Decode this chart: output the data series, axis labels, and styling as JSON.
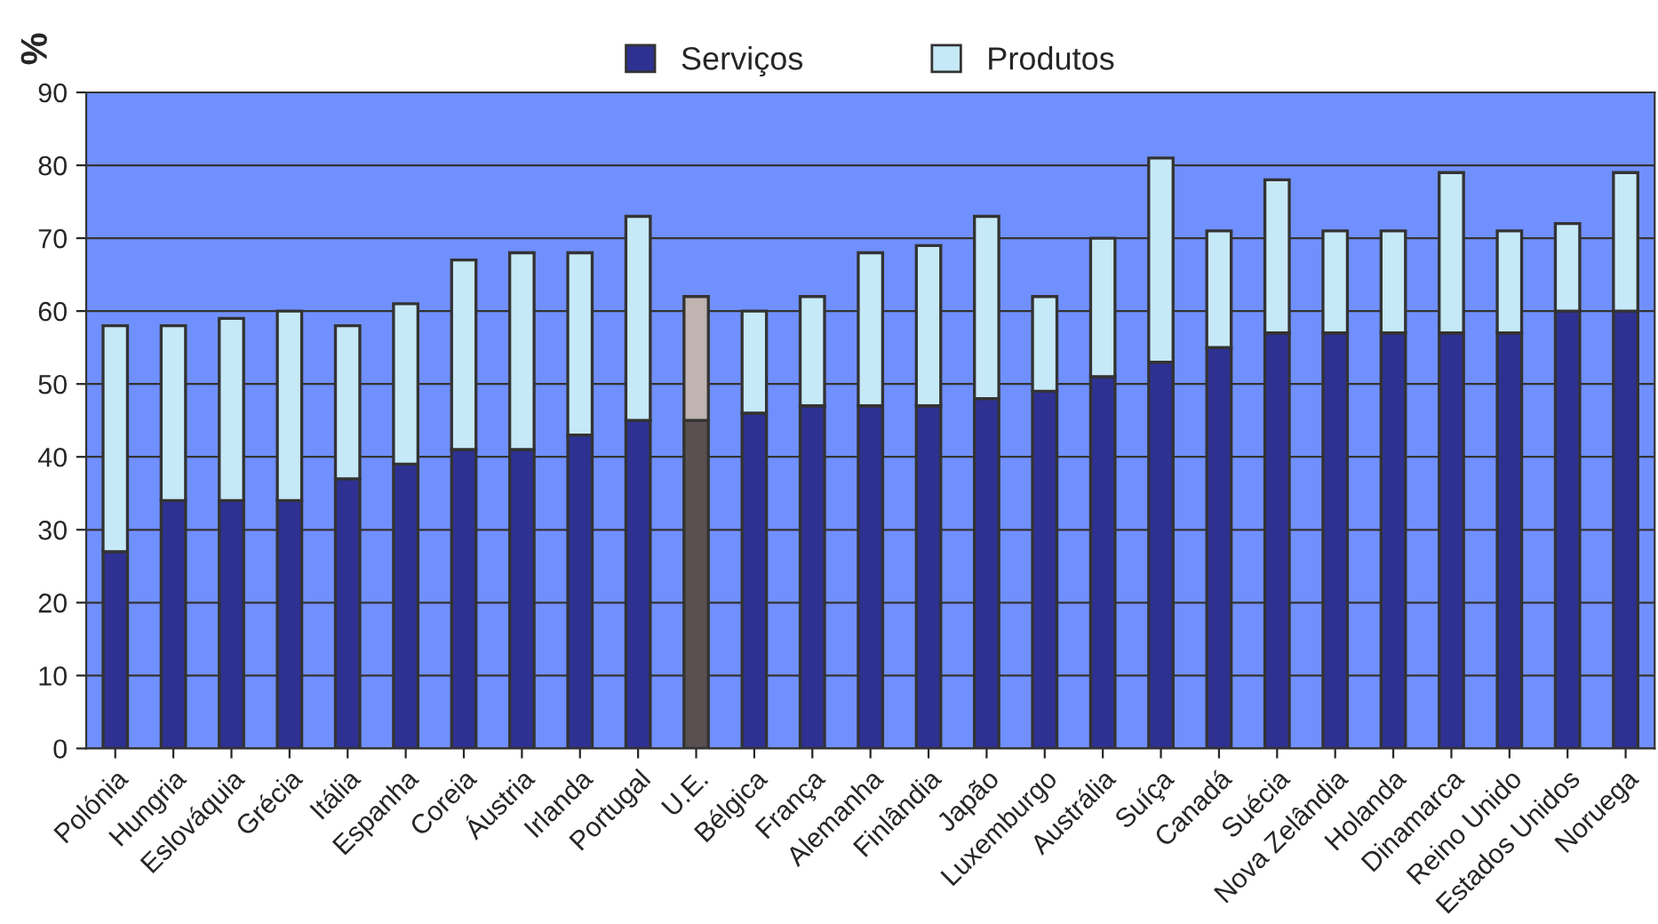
{
  "chart_data": {
    "type": "bar",
    "stacked": true,
    "ylabel": "%",
    "categories": [
      "Polónia",
      "Hungria",
      "Eslováquia",
      "Grécia",
      "Itália",
      "Espanha",
      "Coreia",
      "Áustria",
      "Irlanda",
      "Portugal",
      "U.E.",
      "Bélgica",
      "França",
      "Alemanha",
      "Finlândia",
      "Japão",
      "Luxemburgo",
      "Austrália",
      "Suíça",
      "Canadá",
      "Suécia",
      "Nova Zelândia",
      "Holanda",
      "Dinamarca",
      "Reino Unido",
      "Estados Unidos",
      "Noruega"
    ],
    "series": [
      {
        "name": "Serviços",
        "color": "#2e3192",
        "colors": [
          "#2e3192",
          "#2e3192",
          "#2e3192",
          "#2e3192",
          "#2e3192",
          "#2e3192",
          "#2e3192",
          "#2e3192",
          "#2e3192",
          "#2e3192",
          "#5a5050",
          "#2e3192",
          "#2e3192",
          "#2e3192",
          "#2e3192",
          "#2e3192",
          "#2e3192",
          "#2e3192",
          "#2e3192",
          "#2e3192",
          "#2e3192",
          "#2e3192",
          "#2e3192",
          "#2e3192",
          "#2e3192",
          "#2e3192",
          "#2e3192"
        ],
        "values": [
          27,
          34,
          34,
          34,
          37,
          39,
          41,
          41,
          43,
          45,
          45,
          46,
          47,
          47,
          47,
          48,
          49,
          51,
          53,
          55,
          57,
          57,
          57,
          57,
          57,
          60,
          60
        ]
      },
      {
        "name": "Produtos",
        "color": "#c6e9f7",
        "colors": [
          "#c6e9f7",
          "#c6e9f7",
          "#c6e9f7",
          "#c6e9f7",
          "#c6e9f7",
          "#c6e9f7",
          "#c6e9f7",
          "#c6e9f7",
          "#c6e9f7",
          "#c6e9f7",
          "#c0b4b0",
          "#c6e9f7",
          "#c6e9f7",
          "#c6e9f7",
          "#c6e9f7",
          "#c6e9f7",
          "#c6e9f7",
          "#c6e9f7",
          "#c6e9f7",
          "#c6e9f7",
          "#c6e9f7",
          "#c6e9f7",
          "#c6e9f7",
          "#c6e9f7",
          "#c6e9f7",
          "#c6e9f7",
          "#c6e9f7"
        ],
        "values": [
          31,
          24,
          25,
          26,
          21,
          22,
          26,
          27,
          25,
          28,
          17,
          14,
          15,
          21,
          22,
          25,
          13,
          19,
          28,
          16,
          21,
          14,
          14,
          22,
          14,
          12,
          19
        ]
      }
    ],
    "ylim": [
      0,
      90
    ],
    "yticks": [
      0,
      10,
      20,
      30,
      40,
      50,
      60,
      70,
      80,
      90
    ],
    "grid": "y",
    "legend": "top"
  }
}
